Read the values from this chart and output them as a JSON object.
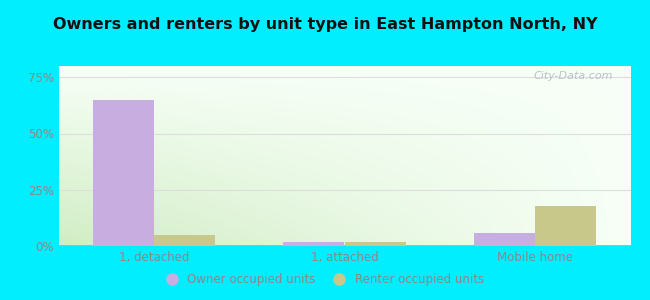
{
  "title": "Owners and renters by unit type in East Hampton North, NY",
  "categories": [
    "1, detached",
    "1, attached",
    "Mobile home"
  ],
  "owner_values": [
    65.0,
    2.0,
    6.0
  ],
  "renter_values": [
    5.0,
    2.0,
    18.0
  ],
  "owner_color": "#c8aee0",
  "renter_color": "#c8c88a",
  "background_color": "#00eeff",
  "yticks": [
    0,
    25,
    50,
    75
  ],
  "ylim": [
    0,
    80
  ],
  "bar_width": 0.32,
  "legend_owner": "Owner occupied units",
  "legend_renter": "Renter occupied units",
  "watermark": "City-Data.com",
  "title_color": "#111111",
  "tick_color": "#888888",
  "grid_color": "#dddddd"
}
